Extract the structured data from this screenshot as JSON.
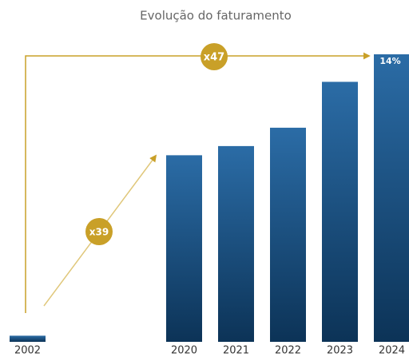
{
  "chart_data": {
    "type": "bar",
    "title": "Evolução do faturamento",
    "categories": [
      "2002",
      "2020",
      "2021",
      "2022",
      "2023",
      "2024"
    ],
    "values": [
      1,
      30.5,
      32,
      35,
      42.5,
      47
    ],
    "color": "#1d5a8f",
    "ylim": [
      0,
      47
    ],
    "annotations": [
      "x47",
      "x39",
      "14%"
    ],
    "annotation_color": "#c9a028"
  }
}
